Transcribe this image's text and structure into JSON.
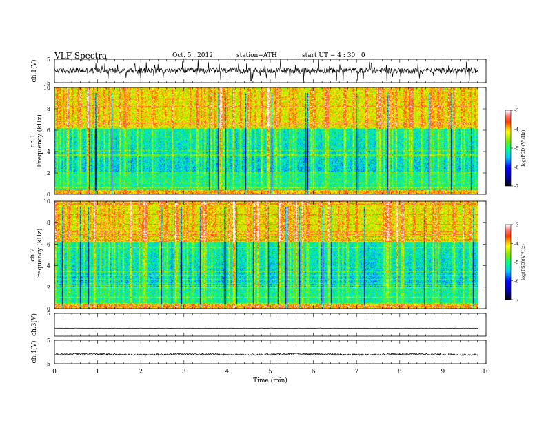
{
  "header": {
    "title": "VLF Spectra",
    "date": "Oct. 5  , 2012",
    "station": "station=ATH",
    "start": "start  UT  =   4  : 30 : 0"
  },
  "chart_data": [
    {
      "type": "line",
      "ylabel": "ch.1(V)",
      "xlim": [
        0,
        10
      ],
      "ylim": [
        -5,
        5
      ],
      "yticks": [
        "5",
        "-5"
      ],
      "series": [
        {
          "x_range": [
            0,
            9.82
          ],
          "trace": "noisy",
          "baseline": 0.2,
          "amplitude": 3.5
        }
      ]
    },
    {
      "type": "heatmap",
      "ylabel": "ch.1",
      "ylabel2": "Frequency  (kHz)",
      "xlim": [
        0,
        10
      ],
      "ylim": [
        0,
        10
      ],
      "yticks": [
        "0",
        "2",
        "4",
        "6",
        "8",
        "10"
      ],
      "colorbar": {
        "label": "log(PSD)(V²/Hz)",
        "range": [
          -7,
          -3
        ],
        "ticks": [
          "-3",
          "-4",
          "-5",
          "-6",
          "-7"
        ]
      },
      "x_range": [
        0,
        9.82
      ]
    },
    {
      "type": "heatmap",
      "ylabel": "ch.2",
      "ylabel2": "Frequency  (kHz)",
      "xlim": [
        0,
        10
      ],
      "ylim": [
        0,
        10
      ],
      "yticks": [
        "0",
        "2",
        "4",
        "6",
        "8",
        "10"
      ],
      "colorbar": {
        "label": "log(PSD)(V²/Hz)",
        "range": [
          -7,
          -3
        ],
        "ticks": [
          "-3",
          "-4",
          "-5",
          "-6",
          "-7"
        ]
      },
      "x_range": [
        0,
        9.82
      ]
    },
    {
      "type": "line",
      "ylabel": "ch.3(V)",
      "xlim": [
        0,
        10
      ],
      "ylim": [
        -5,
        5
      ],
      "yticks": [
        "5"
      ],
      "series": [
        {
          "x_range": [
            0,
            9.82
          ],
          "trace": "flat",
          "baseline": -1.5,
          "amplitude": 0.2
        }
      ]
    },
    {
      "type": "line",
      "ylabel": "ch.4(V)",
      "xlim": [
        0,
        10
      ],
      "ylim": [
        -5,
        5
      ],
      "yticks": [
        "5",
        "-5"
      ],
      "xlabel": "Time  (min)",
      "xticks": [
        "0",
        "1",
        "2",
        "3",
        "4",
        "5",
        "6",
        "7",
        "8",
        "9",
        "10"
      ],
      "series": [
        {
          "x_range": [
            0,
            9.82
          ],
          "trace": "wavy",
          "baseline": -1,
          "amplitude": 0.7
        }
      ]
    }
  ]
}
